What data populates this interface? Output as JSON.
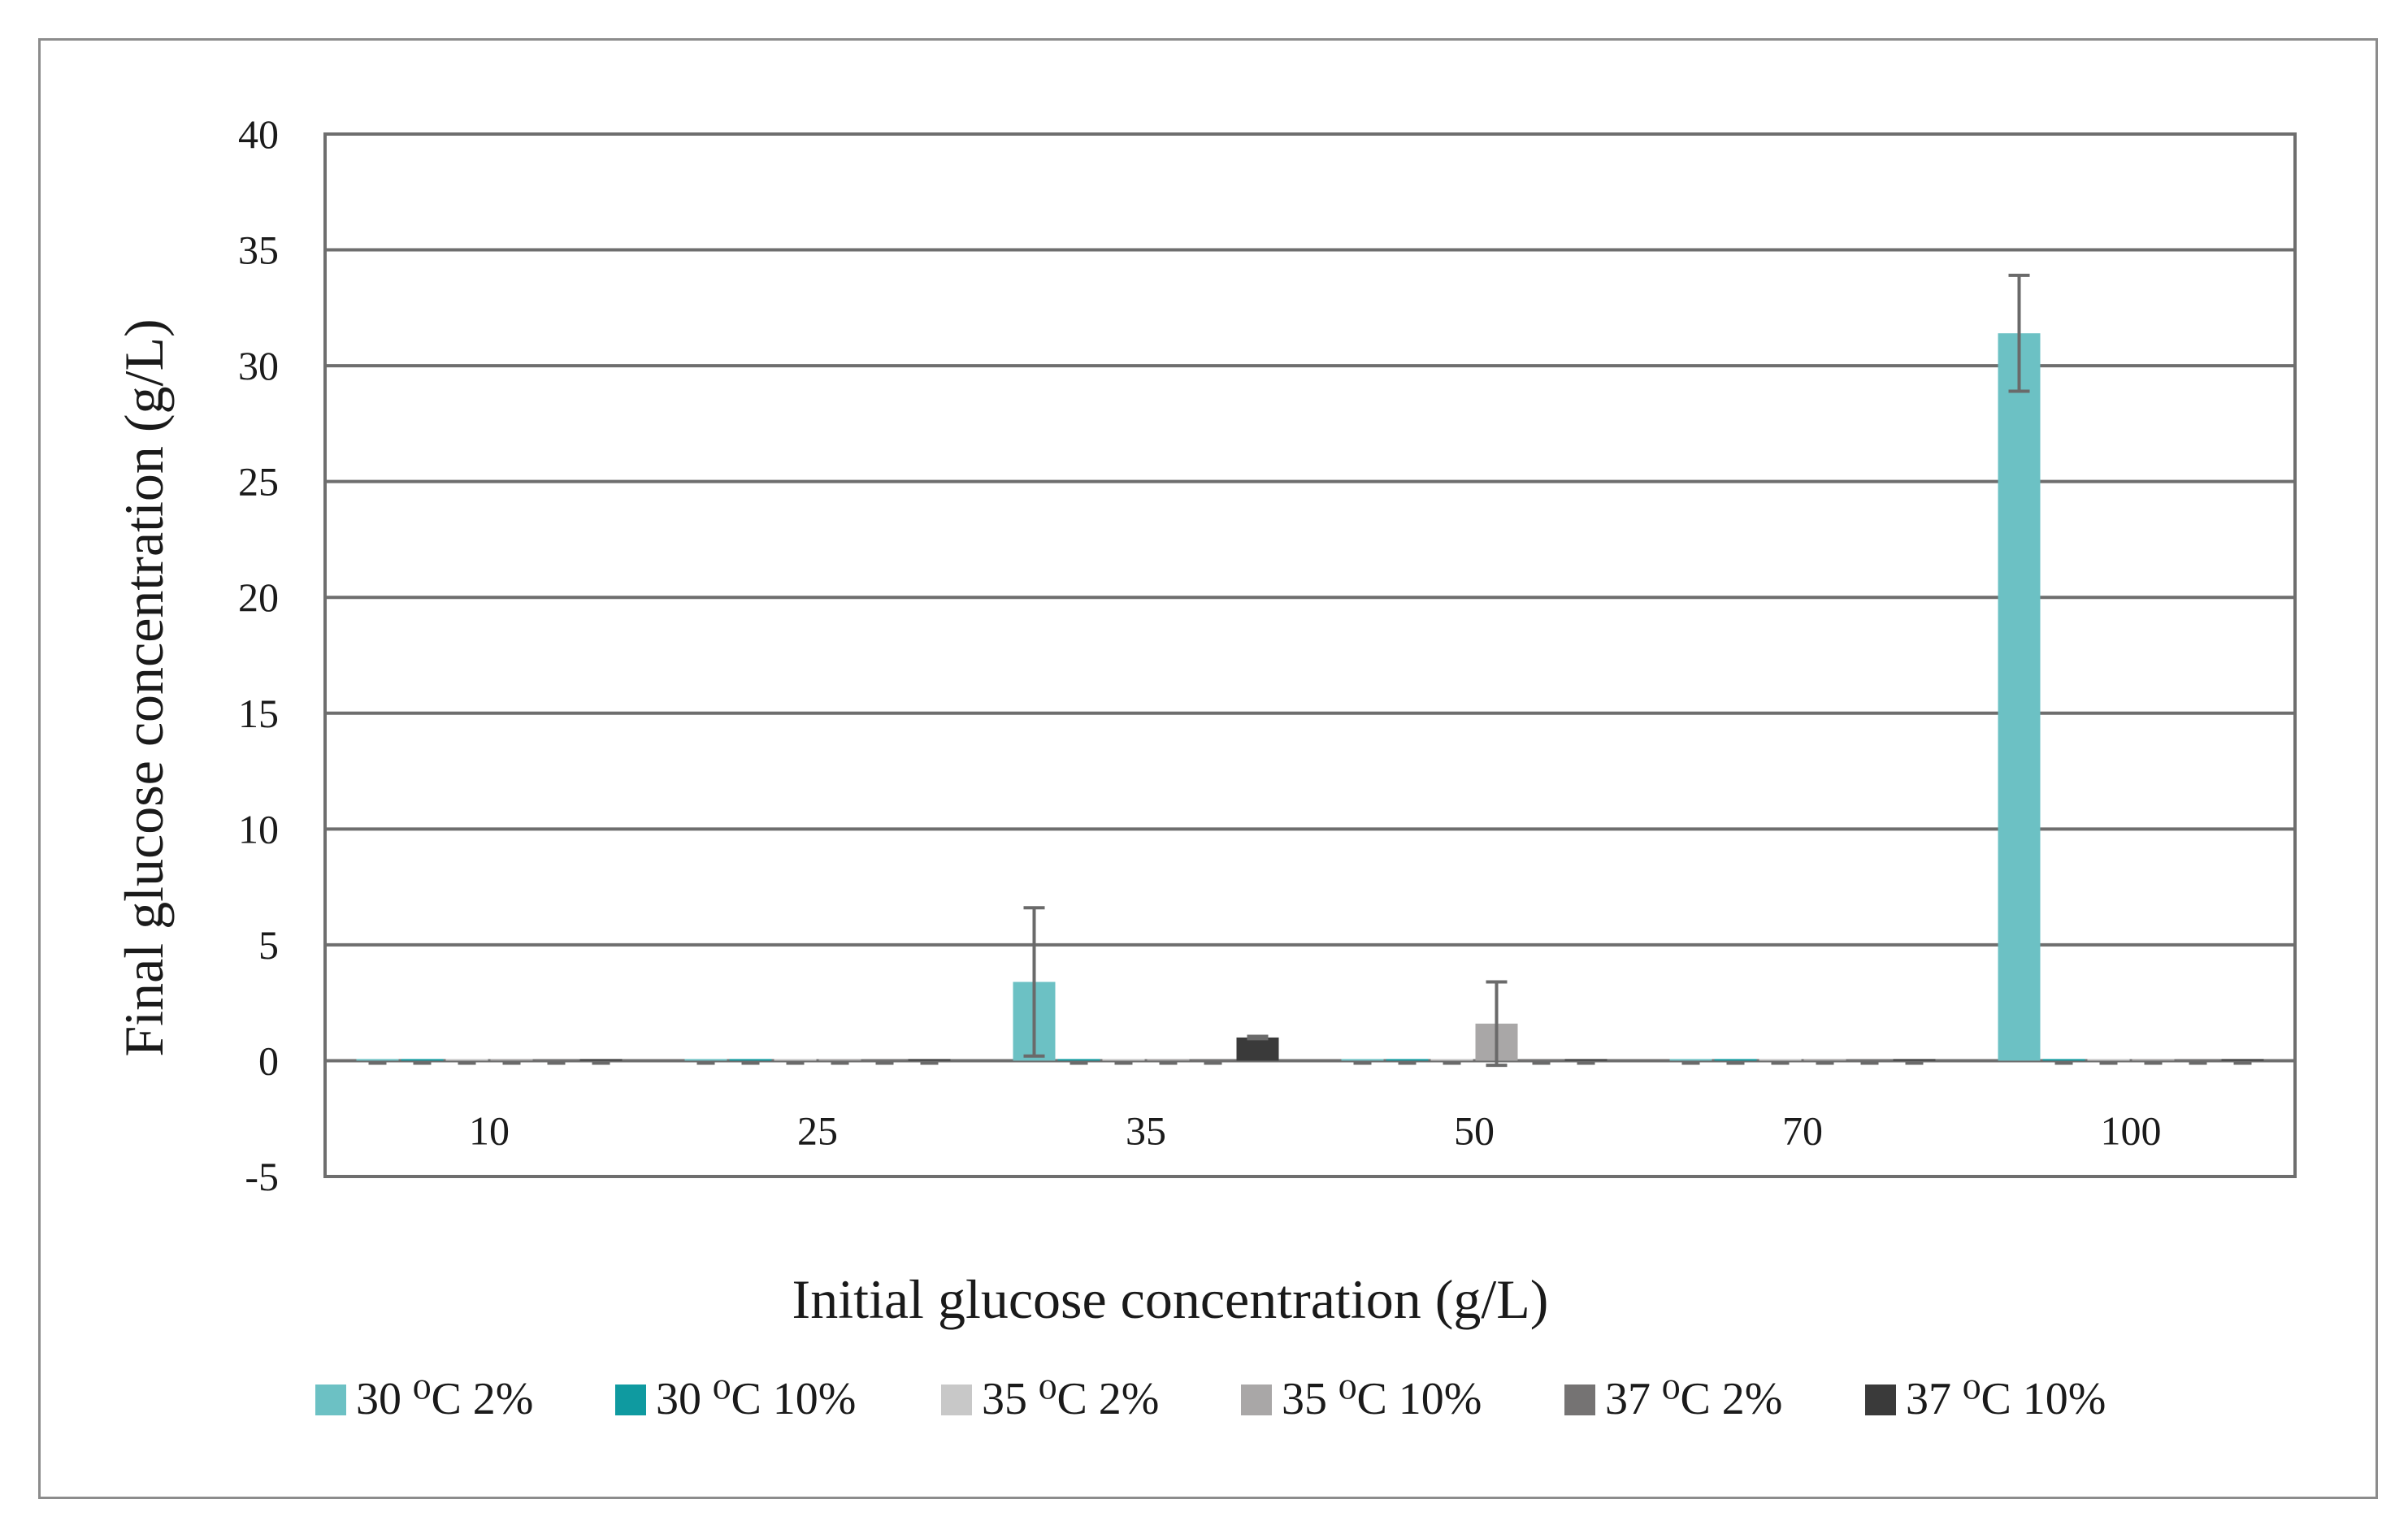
{
  "chart_data": {
    "type": "bar",
    "title": "",
    "xlabel": "Initial glucose concentration (g/L)",
    "ylabel": "Final glucose concentration (g/L)",
    "categories": [
      "10",
      "25",
      "35",
      "50",
      "70",
      "100"
    ],
    "ylim": [
      -5,
      40
    ],
    "yticks": [
      "-5",
      "0",
      "5",
      "10",
      "15",
      "20",
      "25",
      "30",
      "35",
      "40"
    ],
    "ytick_values": [
      -5,
      0,
      5,
      10,
      15,
      20,
      25,
      30,
      35,
      40
    ],
    "grid": true,
    "legend_position": "bottom",
    "series": [
      {
        "name": "30 ⁰C 2%",
        "color": "#6cc1c4",
        "values": [
          0,
          0,
          3.4,
          0,
          0,
          31.4
        ],
        "errors": [
          0,
          0,
          3.2,
          0,
          0,
          2.5
        ]
      },
      {
        "name": "30 ⁰C 10%",
        "color": "#0f9aa0",
        "values": [
          0,
          0,
          0,
          0,
          0,
          0
        ],
        "errors": [
          0,
          0,
          0,
          0,
          0,
          0
        ]
      },
      {
        "name": "35 ⁰C 2%",
        "color": "#c8c8c8",
        "values": [
          0,
          0,
          0,
          0,
          0,
          0
        ],
        "errors": [
          0,
          0,
          0,
          0,
          0,
          0
        ]
      },
      {
        "name": "35 ⁰C 10%",
        "color": "#a9a7a7",
        "values": [
          0,
          0,
          0,
          1.6,
          0,
          0
        ],
        "errors": [
          0,
          0,
          0,
          1.8,
          0,
          0
        ]
      },
      {
        "name": "37 ⁰C 2%",
        "color": "#757373",
        "values": [
          0,
          0,
          0,
          0,
          0,
          0
        ],
        "errors": [
          0,
          0,
          0,
          0,
          0,
          0
        ]
      },
      {
        "name": "37 ⁰C 10%",
        "color": "#3a3a3a",
        "values": [
          0,
          0,
          1.0,
          0,
          0,
          0
        ],
        "errors": [
          0,
          0,
          0.05,
          0,
          0,
          0
        ]
      }
    ]
  }
}
